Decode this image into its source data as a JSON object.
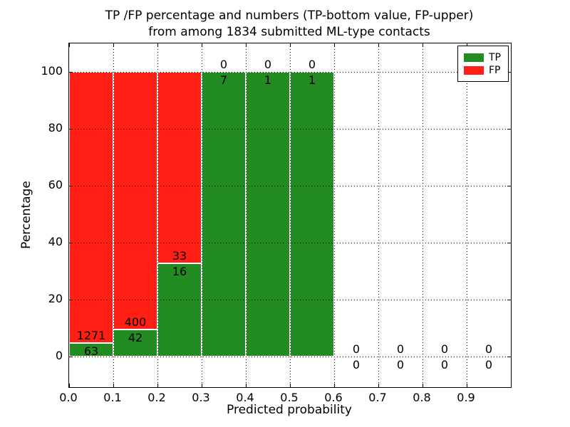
{
  "figure": {
    "title_line1": "TP /FP percentage and numbers (TP-bottom value, FP-upper)",
    "title_line2": "from among 1834 submitted ML-type contacts"
  },
  "chart_data": {
    "type": "bar",
    "stacked": true,
    "title": "TP /FP percentage and numbers (TP-bottom value, FP-upper)\nfrom among 1834 submitted ML-type contacts",
    "xlabel": "Predicted probability",
    "ylabel": "Percentage",
    "total_contacts": 1834,
    "xlim": [
      0.0,
      1.0
    ],
    "ylim": [
      -11,
      110
    ],
    "grid": true,
    "grid_style": "dotted",
    "x_ticks": [
      "0.0",
      "0.1",
      "0.2",
      "0.3",
      "0.4",
      "0.5",
      "0.6",
      "0.7",
      "0.8",
      "0.9"
    ],
    "y_ticks": [
      "0",
      "20",
      "40",
      "60",
      "80",
      "100"
    ],
    "y_tick_values": [
      0,
      20,
      40,
      60,
      80,
      100
    ],
    "bin_width": 0.1,
    "bins": [
      {
        "range": [
          0.0,
          0.1
        ],
        "tp": 63,
        "fp": 1271,
        "tp_pct": 4.7
      },
      {
        "range": [
          0.1,
          0.2
        ],
        "tp": 42,
        "fp": 400,
        "tp_pct": 9.5
      },
      {
        "range": [
          0.2,
          0.3
        ],
        "tp": 16,
        "fp": 33,
        "tp_pct": 32.7
      },
      {
        "range": [
          0.3,
          0.4
        ],
        "tp": 7,
        "fp": 0,
        "tp_pct": 100
      },
      {
        "range": [
          0.4,
          0.5
        ],
        "tp": 1,
        "fp": 0,
        "tp_pct": 100
      },
      {
        "range": [
          0.5,
          0.6
        ],
        "tp": 1,
        "fp": 0,
        "tp_pct": 100
      },
      {
        "range": [
          0.6,
          0.7
        ],
        "tp": 0,
        "fp": 0,
        "tp_pct": null
      },
      {
        "range": [
          0.7,
          0.8
        ],
        "tp": 0,
        "fp": 0,
        "tp_pct": null
      },
      {
        "range": [
          0.8,
          0.9
        ],
        "tp": 0,
        "fp": 0,
        "tp_pct": null
      },
      {
        "range": [
          0.9,
          1.0
        ],
        "tp": 0,
        "fp": 0,
        "tp_pct": null
      }
    ],
    "legend": {
      "position": "upper right",
      "entries": [
        {
          "label": "TP",
          "color": "#228B22"
        },
        {
          "label": "FP",
          "color": "#FF1F14"
        }
      ]
    },
    "colors": {
      "tp": "#228B22",
      "fp": "#FF1F14",
      "grid": "#000000",
      "bar_edge": "#ffffff"
    }
  }
}
